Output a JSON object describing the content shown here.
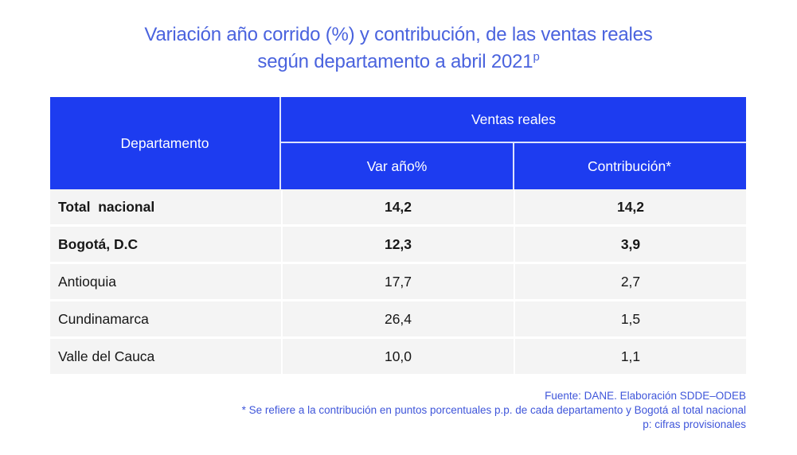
{
  "title": {
    "line1": "Variación año corrido (%) y contribución, de las ventas reales",
    "line2": "según departamento a abril 2021",
    "line2_sup": "p"
  },
  "table": {
    "header": {
      "departamento": "Departamento",
      "group": "Ventas reales",
      "var": "Var año%",
      "contrib": "Contribución*"
    },
    "rows": [
      {
        "departamento": "Total  nacional",
        "var": "14,2",
        "contrib": "14,2",
        "bold": true
      },
      {
        "departamento": "Bogotá, D.C",
        "var": "12,3",
        "contrib": "3,9",
        "bold": true
      },
      {
        "departamento": "Antioquia",
        "var": "17,7",
        "contrib": "2,7",
        "bold": false
      },
      {
        "departamento": "Cundinamarca",
        "var": "26,4",
        "contrib": "1,5",
        "bold": false
      },
      {
        "departamento": "Valle del Cauca",
        "var": "10,0",
        "contrib": "1,1",
        "bold": false
      }
    ]
  },
  "footer": {
    "line1": "Fuente: DANE. Elaboración SDDE–ODEB",
    "line2": "* Se refiere a la contribución en puntos porcentuales p.p. de cada departamento y Bogotá al total nacional",
    "line3": "p: cifras provisionales"
  },
  "colors": {
    "header_blue": "#1d3cf0",
    "title_blue": "#4a63de",
    "footer_blue": "#3f56da",
    "row_bg": "#f4f4f4",
    "body_text": "#171717"
  },
  "chart_data": {
    "type": "table",
    "title": "Variación año corrido (%) y contribución, de las ventas reales según departamento a abril 2021p",
    "column_group": {
      "label": "Ventas reales",
      "spans": [
        "Var año%",
        "Contribución*"
      ]
    },
    "columns": [
      "Departamento",
      "Var año%",
      "Contribución*"
    ],
    "rows": [
      [
        "Total nacional",
        14.2,
        14.2
      ],
      [
        "Bogotá, D.C",
        12.3,
        3.9
      ],
      [
        "Antioquia",
        17.7,
        2.7
      ],
      [
        "Cundinamarca",
        26.4,
        1.5
      ],
      [
        "Valle del Cauca",
        10.0,
        1.1
      ]
    ],
    "notes": [
      "Fuente: DANE. Elaboración SDDE–ODEB",
      "* Se refiere a la contribución en puntos porcentuales p.p. de cada departamento y Bogotá al total nacional",
      "p: cifras provisionales"
    ]
  }
}
